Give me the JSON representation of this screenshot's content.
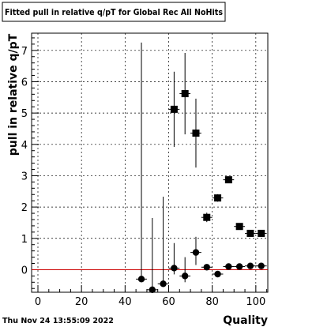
{
  "chart_data": {
    "type": "scatter",
    "title": "Fitted pull in relative q/pT for Global Rec All NoHits",
    "xlabel": "Quality",
    "ylabel": "pull in relative q/pT",
    "xlim": [
      -2.9,
      105.5
    ],
    "ylim": [
      -0.72,
      7.55
    ],
    "x_ticks": [
      0,
      20,
      40,
      60,
      80,
      100
    ],
    "y_ticks": [
      0,
      1,
      2,
      3,
      4,
      5,
      6,
      7
    ],
    "grid": true,
    "reference_line": {
      "y": 0,
      "color": "#cc0000"
    },
    "footer_timestamp": "Thu Nov 24 13:55:09 2022",
    "series": [
      {
        "marker": "circle",
        "points": [
          {
            "x": 47.5,
            "y": -0.3,
            "err_low": 0,
            "err_high": 7.55
          },
          {
            "x": 52.5,
            "y": -0.64,
            "err_low": 0,
            "err_high": 2.29
          },
          {
            "x": 57.5,
            "y": -0.45,
            "err_low": 0,
            "err_high": 2.78
          },
          {
            "x": 62.5,
            "y": 0.05,
            "err_low": 0.2,
            "err_high": 0.8
          },
          {
            "x": 67.5,
            "y": -0.2,
            "err_low": 0.2,
            "err_high": 0.6
          },
          {
            "x": 72.5,
            "y": 0.55,
            "err_low": 0.4,
            "err_high": 0.5
          },
          {
            "x": 77.5,
            "y": 0.08,
            "err_low": 0.08,
            "err_high": 0.08
          },
          {
            "x": 82.5,
            "y": -0.14,
            "err_low": 0.05,
            "err_high": 0.05
          },
          {
            "x": 87.5,
            "y": 0.1,
            "err_low": 0.04,
            "err_high": 0.04
          },
          {
            "x": 92.5,
            "y": 0.1,
            "err_low": 0.03,
            "err_high": 0.03
          },
          {
            "x": 97.5,
            "y": 0.12,
            "err_low": 0.03,
            "err_high": 0.03
          },
          {
            "x": 102.5,
            "y": 0.12,
            "err_low": 0.03,
            "err_high": 0.03
          }
        ]
      },
      {
        "marker": "square",
        "points": [
          {
            "x": 62.5,
            "y": 5.12,
            "err_low": 1.2,
            "err_high": 1.2
          },
          {
            "x": 67.5,
            "y": 5.62,
            "err_low": 1.3,
            "err_high": 1.3
          },
          {
            "x": 72.5,
            "y": 4.36,
            "err_low": 1.1,
            "err_high": 1.1
          },
          {
            "x": 77.5,
            "y": 1.67,
            "err_low": 0.15,
            "err_high": 0.15
          },
          {
            "x": 82.5,
            "y": 2.29,
            "err_low": 0.12,
            "err_high": 0.12
          },
          {
            "x": 87.5,
            "y": 2.87,
            "err_low": 0.1,
            "err_high": 0.1
          },
          {
            "x": 92.5,
            "y": 1.38,
            "err_low": 0.06,
            "err_high": 0.06
          },
          {
            "x": 97.5,
            "y": 1.16,
            "err_low": 0.05,
            "err_high": 0.05
          },
          {
            "x": 102.5,
            "y": 1.16,
            "err_low": 0.05,
            "err_high": 0.05
          }
        ]
      }
    ]
  }
}
